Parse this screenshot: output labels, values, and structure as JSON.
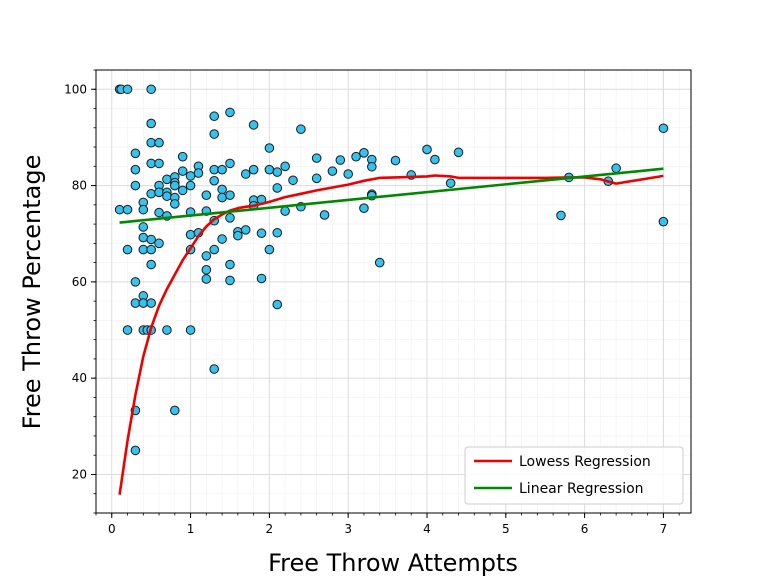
{
  "chart_data": {
    "type": "scatter",
    "title": "",
    "xlabel": "Free Throw Attempts",
    "ylabel": "Free Throw Percentage",
    "xlim": [
      -0.2,
      7.35
    ],
    "ylim": [
      12,
      104
    ],
    "xticks": [
      0,
      1,
      2,
      3,
      4,
      5,
      6,
      7
    ],
    "yticks": [
      20,
      40,
      60,
      80,
      100
    ],
    "grid": true,
    "legend_position": "lower-right",
    "colors": {
      "points_fill": "#33c3ee",
      "points_edge": "#1a1a1a",
      "lowess": "#ee0000",
      "linear": "#008800"
    },
    "series": [
      {
        "kind": "scatter",
        "points": [
          [
            0.1,
            100
          ],
          [
            0.12,
            100
          ],
          [
            0.2,
            100
          ],
          [
            0.5,
            100
          ],
          [
            0.1,
            75
          ],
          [
            0.2,
            75
          ],
          [
            0.2,
            66.7
          ],
          [
            0.2,
            50
          ],
          [
            0.3,
            86.7
          ],
          [
            0.3,
            83.3
          ],
          [
            0.3,
            80
          ],
          [
            0.3,
            60
          ],
          [
            0.3,
            55.6
          ],
          [
            0.3,
            33.3
          ],
          [
            0.3,
            25
          ],
          [
            0.4,
            76.5
          ],
          [
            0.4,
            75
          ],
          [
            0.4,
            71.4
          ],
          [
            0.4,
            69.2
          ],
          [
            0.4,
            66.7
          ],
          [
            0.4,
            57.1
          ],
          [
            0.4,
            55.6
          ],
          [
            0.4,
            50
          ],
          [
            0.45,
            50
          ],
          [
            0.5,
            92.9
          ],
          [
            0.5,
            88.9
          ],
          [
            0.5,
            84.6
          ],
          [
            0.5,
            78.3
          ],
          [
            0.5,
            68.8
          ],
          [
            0.5,
            66.7
          ],
          [
            0.5,
            63.6
          ],
          [
            0.5,
            55.6
          ],
          [
            0.5,
            50
          ],
          [
            0.6,
            88.9
          ],
          [
            0.6,
            84.6
          ],
          [
            0.6,
            80
          ],
          [
            0.6,
            78.6
          ],
          [
            0.6,
            74.4
          ],
          [
            0.6,
            68
          ],
          [
            0.7,
            81.3
          ],
          [
            0.7,
            78.6
          ],
          [
            0.7,
            77.8
          ],
          [
            0.7,
            73.7
          ],
          [
            0.7,
            50
          ],
          [
            0.8,
            81.8
          ],
          [
            0.8,
            80.6
          ],
          [
            0.8,
            80
          ],
          [
            0.8,
            77.5
          ],
          [
            0.8,
            76.2
          ],
          [
            0.8,
            33.3
          ],
          [
            0.9,
            86
          ],
          [
            0.9,
            83
          ],
          [
            0.9,
            79
          ],
          [
            1.0,
            82
          ],
          [
            1.0,
            80
          ],
          [
            1.0,
            74.5
          ],
          [
            1.0,
            69.8
          ],
          [
            1.0,
            66.7
          ],
          [
            1.0,
            50
          ],
          [
            1.1,
            84
          ],
          [
            1.1,
            82.6
          ],
          [
            1.1,
            70.2
          ],
          [
            1.2,
            78
          ],
          [
            1.2,
            74.7
          ],
          [
            1.2,
            65.4
          ],
          [
            1.2,
            62.5
          ],
          [
            1.2,
            60.6
          ],
          [
            1.3,
            94.4
          ],
          [
            1.3,
            90.7
          ],
          [
            1.3,
            83.3
          ],
          [
            1.3,
            81
          ],
          [
            1.3,
            72.7
          ],
          [
            1.3,
            66.7
          ],
          [
            1.3,
            41.9
          ],
          [
            1.4,
            83.3
          ],
          [
            1.4,
            79.2
          ],
          [
            1.4,
            77.5
          ],
          [
            1.4,
            68.9
          ],
          [
            1.5,
            95.2
          ],
          [
            1.5,
            84.6
          ],
          [
            1.5,
            78
          ],
          [
            1.5,
            73.3
          ],
          [
            1.5,
            63.6
          ],
          [
            1.5,
            60.3
          ],
          [
            1.6,
            70.4
          ],
          [
            1.6,
            69.6
          ],
          [
            1.7,
            82.4
          ],
          [
            1.7,
            70.8
          ],
          [
            1.8,
            92.6
          ],
          [
            1.8,
            83.3
          ],
          [
            1.8,
            77
          ],
          [
            1.8,
            75.8
          ],
          [
            1.9,
            77.1
          ],
          [
            1.9,
            70.1
          ],
          [
            1.9,
            60.7
          ],
          [
            2.0,
            87.8
          ],
          [
            2.0,
            83.3
          ],
          [
            2.0,
            66.7
          ],
          [
            2.1,
            82.8
          ],
          [
            2.1,
            79.5
          ],
          [
            2.1,
            70.2
          ],
          [
            2.1,
            55.3
          ],
          [
            2.2,
            84
          ],
          [
            2.2,
            74.7
          ],
          [
            2.3,
            81.1
          ],
          [
            2.4,
            91.7
          ],
          [
            2.4,
            75.6
          ],
          [
            2.6,
            85.7
          ],
          [
            2.6,
            81.5
          ],
          [
            2.7,
            73.9
          ],
          [
            2.8,
            83
          ],
          [
            2.9,
            85.3
          ],
          [
            3.0,
            82.4
          ],
          [
            3.1,
            86
          ],
          [
            3.2,
            86.8
          ],
          [
            3.2,
            75.3
          ],
          [
            3.3,
            85.4
          ],
          [
            3.3,
            83.9
          ],
          [
            3.3,
            78.2
          ],
          [
            3.3,
            77.9
          ],
          [
            3.4,
            64
          ],
          [
            3.6,
            85.2
          ],
          [
            3.8,
            82.2
          ],
          [
            4.0,
            87.5
          ],
          [
            4.1,
            85.4
          ],
          [
            4.3,
            80.5
          ],
          [
            4.4,
            86.9
          ],
          [
            5.7,
            73.8
          ],
          [
            5.8,
            81.7
          ],
          [
            6.3,
            80.9
          ],
          [
            6.4,
            83.6
          ],
          [
            7.0,
            91.9
          ],
          [
            7.0,
            72.5
          ]
        ]
      },
      {
        "kind": "line",
        "name": "Lowess Regression",
        "points": [
          [
            0.1,
            15.8
          ],
          [
            0.2,
            27
          ],
          [
            0.3,
            36.5
          ],
          [
            0.4,
            44.5
          ],
          [
            0.5,
            50.5
          ],
          [
            0.6,
            55
          ],
          [
            0.7,
            58.5
          ],
          [
            0.8,
            61.5
          ],
          [
            0.9,
            64.5
          ],
          [
            1.0,
            67
          ],
          [
            1.1,
            69.5
          ],
          [
            1.2,
            71.5
          ],
          [
            1.3,
            73
          ],
          [
            1.4,
            74
          ],
          [
            1.5,
            74.8
          ],
          [
            1.6,
            75.3
          ],
          [
            1.7,
            75.6
          ],
          [
            1.8,
            75.8
          ],
          [
            2.0,
            76.6
          ],
          [
            2.2,
            77.6
          ],
          [
            2.4,
            78.3
          ],
          [
            2.6,
            79
          ],
          [
            2.8,
            79.6
          ],
          [
            3.0,
            80.2
          ],
          [
            3.2,
            81
          ],
          [
            3.4,
            81.6
          ],
          [
            3.6,
            81.7
          ],
          [
            3.8,
            81.8
          ],
          [
            4.0,
            81.9
          ],
          [
            4.1,
            82.1
          ],
          [
            4.3,
            81.9
          ],
          [
            4.4,
            81.6
          ],
          [
            4.6,
            81.6
          ],
          [
            5.0,
            81.6
          ],
          [
            5.5,
            81.6
          ],
          [
            5.8,
            81.7
          ],
          [
            6.0,
            81.7
          ],
          [
            6.2,
            81.3
          ],
          [
            6.4,
            80.4
          ],
          [
            7.0,
            82
          ]
        ]
      },
      {
        "kind": "line",
        "name": "Linear Regression",
        "points": [
          [
            0.1,
            72.3
          ],
          [
            7.0,
            83.5
          ]
        ]
      }
    ]
  }
}
